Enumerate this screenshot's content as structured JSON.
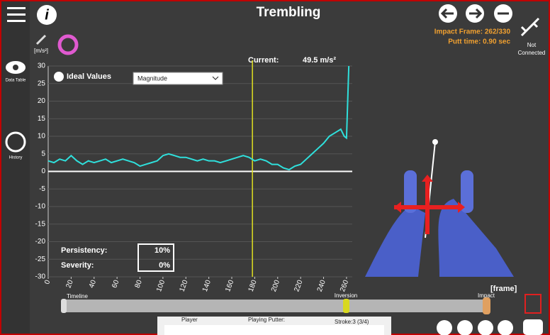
{
  "ui": {
    "title": "Trembling",
    "unit": "[m/s²]",
    "data_table": "Data Table",
    "history": "History",
    "impact_frame": "Impact Frame: 262/330",
    "putt_time": "Putt time: 0.90 sec",
    "not_connected": "Not Connected",
    "current_label": "Current:",
    "current_value": "49.5 m/s²",
    "ideal_values": "Ideal Values",
    "dropdown": "Magnitude",
    "persistency_label": "Persistency:",
    "persistency": "10%",
    "severity_label": "Severity:",
    "severity": "0%",
    "timeline": "Timeline",
    "inversion": "Inversion",
    "impact": "Impact",
    "frame_unit": "[frame]",
    "player": "Player",
    "playing_putter": "Playing Putter:",
    "stroke": "Stroke:3 (3/4)"
  },
  "chart_data": {
    "type": "line",
    "current_frame": 178,
    "x": [
      0,
      5,
      10,
      15,
      20,
      25,
      30,
      35,
      40,
      45,
      50,
      55,
      60,
      65,
      70,
      75,
      80,
      85,
      90,
      95,
      100,
      105,
      110,
      115,
      120,
      125,
      130,
      135,
      140,
      145,
      150,
      155,
      160,
      165,
      170,
      175,
      180,
      185,
      190,
      195,
      200,
      205,
      210,
      215,
      220,
      225,
      230,
      235,
      240,
      245,
      250,
      255,
      258,
      260,
      262
    ],
    "series": [
      {
        "color": "#2fe0dc",
        "values": [
          3,
          2.5,
          3.5,
          3,
          4.5,
          3,
          2,
          3,
          2.5,
          3,
          3.5,
          2.5,
          3,
          3.5,
          3,
          2.5,
          1.5,
          2,
          2.5,
          3,
          4.5,
          5,
          4.5,
          4,
          4,
          3.5,
          3,
          3.5,
          3,
          3,
          2.5,
          3,
          3.5,
          4,
          4.5,
          4,
          3,
          3.5,
          3,
          2,
          2,
          1,
          0.5,
          1.5,
          2,
          3.5,
          5,
          6.5,
          8,
          10,
          11,
          12,
          10,
          9.5,
          30
        ]
      }
    ],
    "xlim": [
      0,
      265
    ],
    "xticks": [
      0,
      20,
      40,
      60,
      80,
      100,
      120,
      140,
      160,
      180,
      200,
      220,
      240,
      260
    ],
    "ylim": [
      -30,
      30
    ],
    "yticks": [
      -30,
      -25,
      -20,
      -15,
      -10,
      -5,
      0,
      5,
      10,
      15,
      20,
      25,
      30
    ],
    "grid": true
  }
}
